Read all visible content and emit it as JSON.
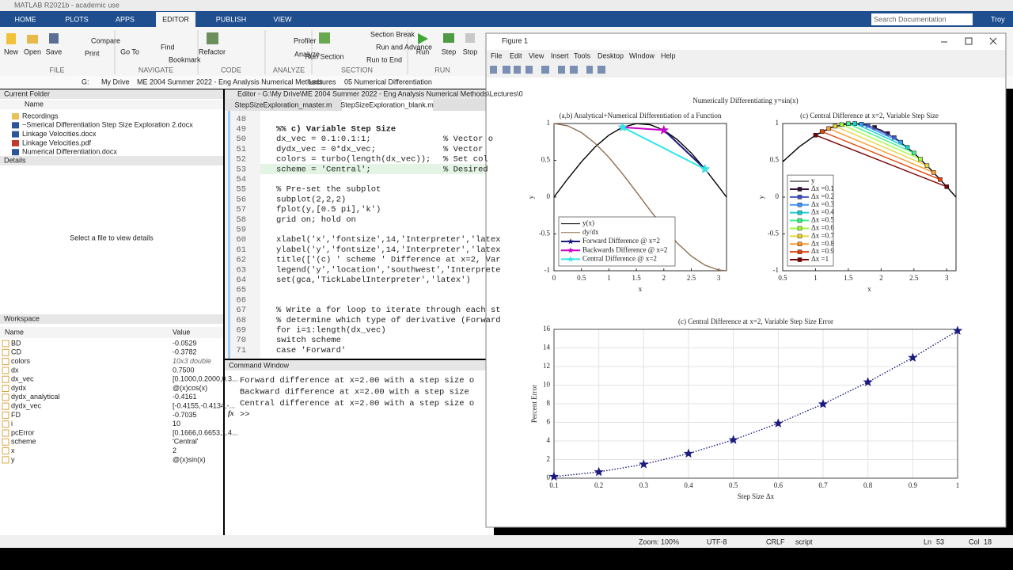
{
  "app": {
    "title": "MATLAB R2021b - academic use",
    "tabs": [
      "HOME",
      "PLOTS",
      "APPS",
      "EDITOR",
      "PUBLISH",
      "VIEW"
    ],
    "search": "Search Documentation",
    "user": "Troy",
    "toolstrip": {
      "buttons": [
        "New",
        "Open",
        "Save",
        "Compare",
        "Print",
        "Go To",
        "Find",
        "Bookmark",
        "Refactor",
        "Profiler",
        "Analyze",
        "Run Section",
        "Section Break",
        "Run and Advance",
        "Run to End",
        "Run",
        "Step",
        "Stop"
      ],
      "sections": [
        "FILE",
        "NAVIGATE",
        "CODE",
        "ANALYZE",
        "SECTION",
        "RUN"
      ]
    }
  },
  "address": [
    "G:",
    "My Drive",
    "ME 2004 Summer 2022 - Eng Analysis Numerical Methods",
    "Lectures",
    "05 Numerical Differentiation"
  ],
  "current_folder": {
    "title": "Current Folder",
    "column": "Name",
    "items": [
      "Recordings",
      "~Smerical Differentiation Step Size Exploration 2.docx",
      "Linkage Velocities.docx",
      "Linkage Velocities.pdf",
      "Numerical Differentiation.docx"
    ]
  },
  "details": {
    "title": "Details",
    "message": "Select a file to view details"
  },
  "workspace": {
    "title": "Workspace",
    "columns": [
      "Name",
      "Value"
    ],
    "rows": [
      [
        "BD",
        "-0.0529"
      ],
      [
        "CD",
        "-0.3782"
      ],
      [
        "colors",
        "10x3 double"
      ],
      [
        "dx",
        "0.7500"
      ],
      [
        "dx_vec",
        "[0.1000,0.2000,0.3..."
      ],
      [
        "dydx",
        "@(x)cos(x)"
      ],
      [
        "dydx_analytical",
        "-0.4161"
      ],
      [
        "dydx_vec",
        "[-0.4155,-0.4134,-..."
      ],
      [
        "FD",
        "-0.7035"
      ],
      [
        "i",
        "10"
      ],
      [
        "pcError",
        "[0.1666,0.6653,1.4..."
      ],
      [
        "scheme",
        "'Central'"
      ],
      [
        "x",
        "2"
      ],
      [
        "y",
        "@(x)sin(x)"
      ]
    ]
  },
  "editor": {
    "title": "Editor - G:\\My Drive\\ME 2004 Summer 2022 - Eng Analysis Numerical Methods\\Lectures\\0",
    "tabs": [
      "StepSizeExploration_master.m",
      "StepSizeExploration_blank.m"
    ],
    "lines": [
      {
        "n": 48
      },
      {
        "n": 49,
        "code": "%% c) Variable Step Size"
      },
      {
        "n": 50,
        "code": "dx_vec = 0.1:0.1:1;",
        "comment": "% Vector o"
      },
      {
        "n": 51,
        "code": "dydx_vec = 0*dx_vec;",
        "comment": "% Vector "
      },
      {
        "n": 52,
        "code": "colors = turbo(length(dx_vec));",
        "comment": "% Set col"
      },
      {
        "n": 53,
        "code": "scheme = 'Central';",
        "comment": "% Desired"
      },
      {
        "n": 54
      },
      {
        "n": 55,
        "code": "% Pre-set the subplot"
      },
      {
        "n": 56,
        "code": "subplot(2,2,2)"
      },
      {
        "n": 57,
        "code": "fplot(y,[0.5 pi],'k')"
      },
      {
        "n": 58,
        "code": "grid on; hold on"
      },
      {
        "n": 59
      },
      {
        "n": 60,
        "code": "xlabel('x','fontsize',14,'Interpreter','latex"
      },
      {
        "n": 61,
        "code": "ylabel('y','fontsize',14,'Interpreter','latex"
      },
      {
        "n": 62,
        "code": "title(['(c) ' scheme ' Difference at x=2, Var"
      },
      {
        "n": 63,
        "code": "legend('y','location','southwest','Interprete"
      },
      {
        "n": 64,
        "code": "set(gca,'TickLabelInterpreter','latex')"
      },
      {
        "n": 65
      },
      {
        "n": 66
      },
      {
        "n": 67,
        "code": "% Write a for loop to iterate through each st"
      },
      {
        "n": 68,
        "code": "% determine which type of derivative (Forward"
      },
      {
        "n": 69,
        "code": "for i=1:length(dx_vec)"
      },
      {
        "n": 70,
        "code": "    switch scheme"
      },
      {
        "n": 71,
        "code": "        case 'Forward'"
      }
    ]
  },
  "command_window": {
    "title": "Command Window",
    "lines": [
      "Forward difference at x=2.00 with a step size o",
      "Backward difference at x=2.00 with a step size",
      "Central difference at x=2.00 with a step size o"
    ],
    "prompt_icon": "fx",
    "prompt": ">>"
  },
  "figure": {
    "title": "Figure 1",
    "menu": [
      "File",
      "Edit",
      "View",
      "Insert",
      "Tools",
      "Desktop",
      "Window",
      "Help"
    ],
    "suptitle": "Numerically Differentiating y=sin(x)"
  },
  "chart_data": [
    {
      "type": "line",
      "title": "(a,b) Analytical+Numerical Differentiation of a Function",
      "xlabel": "x",
      "ylabel": "y",
      "xlim": [
        0,
        3.1416
      ],
      "ylim": [
        -1,
        1
      ],
      "xticks": [
        0,
        0.5,
        1,
        1.5,
        2,
        2.5,
        3
      ],
      "yticks": [
        -1,
        -0.5,
        0,
        0.5,
        1
      ],
      "grid": false,
      "legend": "southwest",
      "series": [
        {
          "name": "y(x)",
          "color": "#000000",
          "x": [
            0,
            0.25,
            0.5,
            0.75,
            1,
            1.25,
            1.5,
            1.75,
            2,
            2.25,
            2.5,
            2.75,
            3,
            3.1416
          ],
          "values": [
            0,
            0.2474,
            0.4794,
            0.6816,
            0.8415,
            0.949,
            0.9975,
            0.984,
            0.9093,
            0.7781,
            0.5985,
            0.3817,
            0.1411,
            0
          ]
        },
        {
          "name": "dy/dx",
          "color": "#8c6d4f",
          "x": [
            0,
            0.25,
            0.5,
            0.75,
            1,
            1.25,
            1.5,
            1.75,
            2,
            2.25,
            2.5,
            2.75,
            3,
            3.1416
          ],
          "values": [
            1,
            0.9689,
            0.8776,
            0.7317,
            0.5403,
            0.3153,
            0.0707,
            -0.1782,
            -0.4161,
            -0.6282,
            -0.8011,
            -0.9243,
            -0.99,
            -1
          ]
        },
        {
          "name": "Forward Difference @ x=2",
          "color": "#1a1a80",
          "marker": "star",
          "x": [
            2,
            2.75
          ],
          "values": [
            0.9093,
            0.3817
          ]
        },
        {
          "name": "Backwards Difference @ x=2",
          "color": "#cc00cc",
          "marker": "star",
          "x": [
            1.25,
            2
          ],
          "values": [
            0.949,
            0.9093
          ]
        },
        {
          "name": "Central Difference @ x=2",
          "color": "#33e6e6",
          "marker": "star",
          "x": [
            1.25,
            2.75
          ],
          "values": [
            0.949,
            0.3817
          ]
        }
      ]
    },
    {
      "type": "line",
      "title": "(c) Central Difference at x=2, Variable Step Size",
      "xlabel": "x",
      "ylabel": "y",
      "xlim": [
        0.5,
        3.1416
      ],
      "ylim": [
        -1,
        1
      ],
      "xticks": [
        0.5,
        1,
        1.5,
        2,
        2.5,
        3
      ],
      "yticks": [
        -1,
        -0.5,
        0,
        0.5,
        1
      ],
      "grid": false,
      "legend": "southwest",
      "series": [
        {
          "name": "y",
          "color": "#000000",
          "x": [
            0.5,
            0.75,
            1,
            1.25,
            1.5,
            1.75,
            2,
            2.25,
            2.5,
            2.75,
            3,
            3.1416
          ],
          "values": [
            0.4794,
            0.6816,
            0.8415,
            0.949,
            0.9975,
            0.984,
            0.9093,
            0.7781,
            0.5985,
            0.3817,
            0.1411,
            0
          ]
        },
        {
          "name": "Δx =0.1",
          "color": "#30123b",
          "marker": "square",
          "x": [
            1.9,
            2.1
          ],
          "values": [
            0.9463,
            0.8632
          ]
        },
        {
          "name": "Δx =0.2",
          "color": "#4454c4",
          "marker": "square",
          "x": [
            1.8,
            2.2
          ],
          "values": [
            0.9738,
            0.8085
          ]
        },
        {
          "name": "Δx =0.3",
          "color": "#4197fd",
          "marker": "square",
          "x": [
            1.7,
            2.3
          ],
          "values": [
            0.9917,
            0.7457
          ]
        },
        {
          "name": "Δx =0.4",
          "color": "#1bd0d5",
          "marker": "square",
          "x": [
            1.6,
            2.4
          ],
          "values": [
            0.9996,
            0.6755
          ]
        },
        {
          "name": "Δx =0.5",
          "color": "#3bf58a",
          "marker": "square",
          "x": [
            1.5,
            2.5
          ],
          "values": [
            0.9975,
            0.5985
          ]
        },
        {
          "name": "Δx =0.6",
          "color": "#a2fc3c",
          "marker": "square",
          "x": [
            1.4,
            2.6
          ],
          "values": [
            0.9854,
            0.5155
          ]
        },
        {
          "name": "Δx =0.7",
          "color": "#e8d539",
          "marker": "square",
          "x": [
            1.3,
            2.7
          ],
          "values": [
            0.9636,
            0.4274
          ]
        },
        {
          "name": "Δx =0.8",
          "color": "#fe9b2d",
          "marker": "square",
          "x": [
            1.2,
            2.8
          ],
          "values": [
            0.932,
            0.335
          ]
        },
        {
          "name": "Δx =0.9",
          "color": "#e4460a",
          "marker": "square",
          "x": [
            1.1,
            2.9
          ],
          "values": [
            0.8912,
            0.2392
          ]
        },
        {
          "name": "Δx =1",
          "color": "#7a0403",
          "marker": "square",
          "x": [
            1,
            3
          ],
          "values": [
            0.8415,
            0.1411
          ]
        }
      ]
    },
    {
      "type": "line",
      "title": "(c) Central Difference at x=2, Variable Step Size Error",
      "xlabel": "Step Size Δx",
      "ylabel": "Percent Error",
      "xlim": [
        0.1,
        1
      ],
      "ylim": [
        0,
        16
      ],
      "xticks": [
        0.1,
        0.2,
        0.3,
        0.4,
        0.5,
        0.6,
        0.7,
        0.8,
        0.9,
        1
      ],
      "yticks": [
        0,
        2,
        4,
        6,
        8,
        10,
        12,
        14,
        16
      ],
      "grid": true,
      "series": [
        {
          "color": "#1a1a80",
          "marker": "star",
          "linestyle": "dotted",
          "x": [
            0.1,
            0.2,
            0.3,
            0.4,
            0.5,
            0.6,
            0.7,
            0.8,
            0.9,
            1
          ],
          "values": [
            0.1666,
            0.6653,
            1.4933,
            2.6454,
            4.1149,
            5.8929,
            7.9679,
            10.3265,
            12.9537,
            15.853
          ]
        }
      ]
    }
  ],
  "status": {
    "zoom": "Zoom: 100%",
    "encoding": "UTF-8",
    "eol": "CRLF",
    "type": "script",
    "ln_label": "Ln",
    "ln": 53,
    "col_label": "Col",
    "col": 18
  }
}
